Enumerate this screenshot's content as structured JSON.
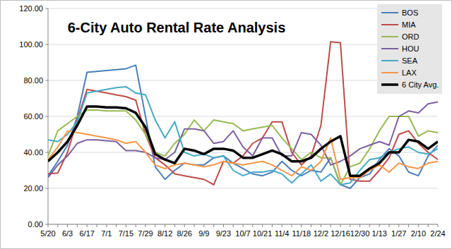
{
  "chart_data": {
    "type": "line",
    "title": "6-City Auto Rental Rate Analysis",
    "categories": [
      "5/20",
      null,
      "6/3",
      null,
      "6/17",
      null,
      "7/1",
      null,
      "7/15",
      null,
      "7/29",
      null,
      "8/12",
      null,
      "8/26",
      null,
      "9/9",
      null,
      "9/23",
      null,
      "10/7",
      null,
      "10/21",
      null,
      "11/4",
      null,
      "11/18",
      null,
      "12/2",
      null,
      "12/16",
      null,
      "12/30",
      null,
      "1/13",
      null,
      "1/27",
      null,
      "2/10",
      null,
      "2/24"
    ],
    "series": [
      {
        "name": "BOS",
        "color": "#4a7ebb",
        "values": [
          27,
          35,
          44,
          60,
          84.5,
          85,
          85.5,
          86,
          86.5,
          88.5,
          60,
          32,
          25,
          30,
          34,
          33,
          33,
          37,
          38,
          34,
          31,
          28,
          27,
          29,
          35,
          30,
          27,
          30,
          29,
          37,
          22,
          20,
          26,
          28,
          36,
          42,
          38,
          29,
          27,
          38,
          44
        ]
      },
      {
        "name": "MIA",
        "color": "#be4b48",
        "values": [
          28,
          28.5,
          40,
          58,
          75,
          74,
          73,
          72,
          71,
          69,
          50,
          37,
          33,
          28,
          27,
          26,
          25,
          22,
          35,
          34,
          38,
          45,
          48,
          57,
          57,
          40,
          33,
          38,
          55,
          101.5,
          101,
          25,
          24,
          24,
          30,
          37,
          50,
          52,
          45,
          40,
          36
        ]
      },
      {
        "name": "ORD",
        "color": "#98b954",
        "values": [
          38,
          52,
          56,
          60,
          63.5,
          63.5,
          63,
          63,
          63,
          58,
          50,
          40,
          38,
          45,
          50,
          58,
          52,
          58,
          57,
          56,
          52,
          53,
          54,
          55,
          48,
          42,
          36,
          40,
          37,
          37,
          22,
          32,
          34,
          42,
          52,
          60,
          60,
          60,
          49,
          52,
          51
        ]
      },
      {
        "name": "HOU",
        "color": "#7d60a0",
        "values": [
          26,
          33,
          38,
          45,
          47,
          47,
          46.5,
          46,
          41,
          41,
          40,
          37,
          36,
          40,
          53,
          53,
          52,
          45,
          46,
          52,
          43,
          38,
          48,
          48,
          38,
          38,
          51,
          50,
          44,
          33,
          35,
          38,
          42,
          44,
          46,
          44,
          60,
          63,
          62,
          67,
          68
        ]
      },
      {
        "name": "SEA",
        "color": "#46aac5",
        "values": [
          47,
          46,
          50,
          57,
          73,
          74,
          75,
          76,
          76.5,
          73,
          72,
          58,
          48,
          57,
          40,
          38,
          39,
          37,
          38,
          30,
          27,
          29,
          29,
          30,
          28,
          23,
          28,
          33,
          24,
          28,
          22,
          23,
          30,
          36,
          37,
          40,
          42,
          43,
          40,
          39,
          42
        ]
      },
      {
        "name": "LAX",
        "color": "#f79646",
        "values": [
          36,
          43,
          52,
          51,
          50,
          49,
          48,
          47,
          45,
          46,
          40,
          33,
          31,
          33,
          34,
          33,
          32,
          33,
          35,
          34,
          33,
          34,
          35,
          33,
          30,
          27,
          32,
          30,
          35,
          48,
          25,
          26,
          26,
          30,
          33,
          29,
          34,
          32,
          31,
          34,
          35
        ]
      },
      {
        "name": "6 City Avg.",
        "color": "#000000",
        "line_style": "thick",
        "values": [
          35,
          40,
          46,
          55,
          65.5,
          65.5,
          65,
          65,
          64.5,
          62,
          54,
          39,
          36,
          34,
          42,
          41,
          39,
          42,
          42,
          41,
          37,
          37,
          39,
          41,
          39,
          35,
          35,
          37,
          42,
          46,
          49,
          27,
          27,
          31,
          34,
          40,
          40,
          47,
          46,
          42,
          46
        ]
      }
    ],
    "ylim": [
      0,
      120
    ],
    "yticks": [
      {
        "value": 0,
        "label": "0.00"
      },
      {
        "value": 20,
        "label": "20.00"
      },
      {
        "value": 40,
        "label": "40.00"
      },
      {
        "value": 60,
        "label": "60.00"
      },
      {
        "value": 80,
        "label": "80.00"
      },
      {
        "value": 100,
        "label": "100.00"
      },
      {
        "value": 120,
        "label": "120.00"
      }
    ],
    "grid": true,
    "legend": "top-right"
  }
}
